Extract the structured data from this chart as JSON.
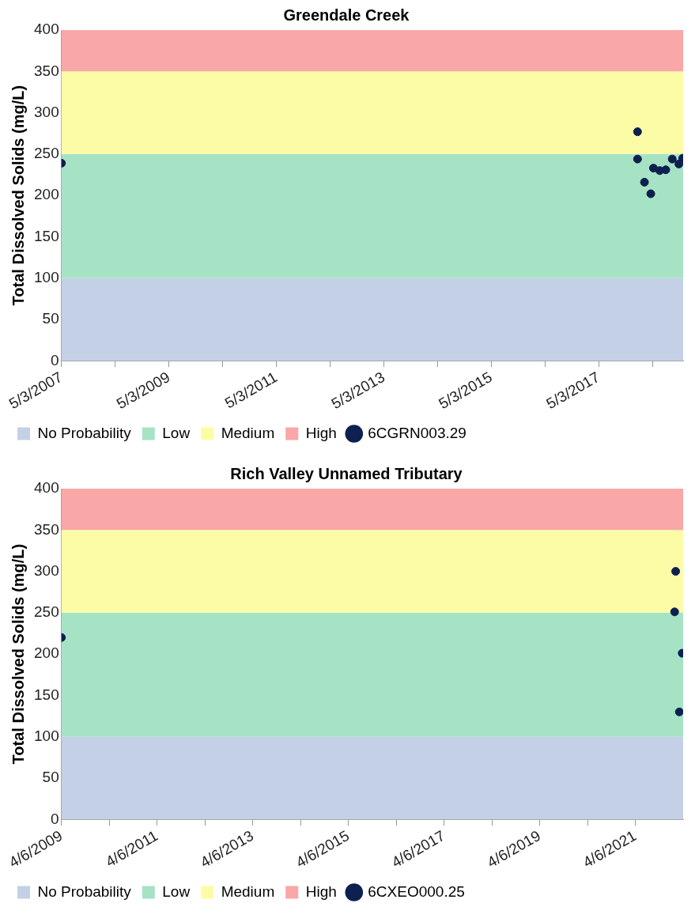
{
  "chart_data": [
    {
      "type": "scatter",
      "title": "Greendale Creek",
      "ylabel": "Total Dissolved Solids (mg/L)",
      "xlim": [
        "2007-05-03",
        "2018-11-28"
      ],
      "ylim": [
        0,
        400
      ],
      "yticks": [
        0,
        50,
        100,
        150,
        200,
        250,
        300,
        350,
        400
      ],
      "xticks": [
        {
          "value": "2007-05-03",
          "label": "5/3/2007"
        },
        {
          "value": "2008-05-03",
          "label": null
        },
        {
          "value": "2009-05-03",
          "label": "5/3/2009"
        },
        {
          "value": "2010-05-03",
          "label": null
        },
        {
          "value": "2011-05-03",
          "label": "5/3/2011"
        },
        {
          "value": "2012-05-03",
          "label": null
        },
        {
          "value": "2013-05-03",
          "label": "5/3/2013"
        },
        {
          "value": "2014-05-03",
          "label": null
        },
        {
          "value": "2015-05-03",
          "label": "5/3/2015"
        },
        {
          "value": "2016-05-03",
          "label": null
        },
        {
          "value": "2017-05-03",
          "label": "5/3/2017"
        },
        {
          "value": "2018-05-03",
          "label": null
        }
      ],
      "bands": [
        {
          "axis": "y",
          "from": 0,
          "to": 100,
          "label": "No Probability",
          "color": "#c3d0e6"
        },
        {
          "axis": "y",
          "from": 100,
          "to": 250,
          "label": "Low",
          "color": "#a6e3c4"
        },
        {
          "axis": "y",
          "from": 250,
          "to": 350,
          "label": "Medium",
          "color": "#fdfca6"
        },
        {
          "axis": "y",
          "from": 350,
          "to": 400,
          "label": "High",
          "color": "#f9a7a7"
        }
      ],
      "series": [
        {
          "name": "6CGRN003.29",
          "color": "#0d2050",
          "x": [
            "2007-05-03",
            "2018-01-22",
            "2018-01-22",
            "2018-03-10",
            "2018-04-22",
            "2018-05-10",
            "2018-06-22",
            "2018-08-02",
            "2018-09-15",
            "2018-10-30",
            "2018-11-25"
          ],
          "values": [
            239,
            277,
            244,
            216,
            202,
            233,
            230,
            231,
            244,
            238,
            245
          ]
        }
      ],
      "marker": "circle",
      "legend": "bottom",
      "grid": false
    },
    {
      "type": "scatter",
      "title": "Rich Valley Unnamed Tributary",
      "ylabel": "Total Dissolved Solids (mg/L)",
      "xlim": [
        "2009-04-06",
        "2022-04-06"
      ],
      "ylim": [
        0,
        400
      ],
      "yticks": [
        0,
        50,
        100,
        150,
        200,
        250,
        300,
        350,
        400
      ],
      "xticks": [
        {
          "value": "2009-04-06",
          "label": "4/6/2009"
        },
        {
          "value": "2010-04-06",
          "label": null
        },
        {
          "value": "2011-04-06",
          "label": "4/6/2011"
        },
        {
          "value": "2012-04-06",
          "label": null
        },
        {
          "value": "2013-04-06",
          "label": "4/6/2013"
        },
        {
          "value": "2014-04-06",
          "label": null
        },
        {
          "value": "2015-04-06",
          "label": "4/6/2015"
        },
        {
          "value": "2016-04-06",
          "label": null
        },
        {
          "value": "2017-04-06",
          "label": "4/6/2017"
        },
        {
          "value": "2018-04-06",
          "label": null
        },
        {
          "value": "2019-04-06",
          "label": "4/6/2019"
        },
        {
          "value": "2020-04-06",
          "label": null
        },
        {
          "value": "2021-04-06",
          "label": "4/6/2021"
        }
      ],
      "bands": [
        {
          "axis": "y",
          "from": 0,
          "to": 100,
          "label": "No Probability",
          "color": "#c3d0e6"
        },
        {
          "axis": "y",
          "from": 100,
          "to": 250,
          "label": "Low",
          "color": "#a6e3c4"
        },
        {
          "axis": "y",
          "from": 250,
          "to": 350,
          "label": "Medium",
          "color": "#fdfca6"
        },
        {
          "axis": "y",
          "from": 350,
          "to": 400,
          "label": "High",
          "color": "#f9a7a7"
        }
      ],
      "series": [
        {
          "name": "6CXEO000.25",
          "color": "#0d2050",
          "x": [
            "2009-04-06",
            "2022-02-08",
            "2022-01-31",
            "2022-03-30",
            "2022-03-08"
          ],
          "values": [
            220,
            300,
            251,
            201,
            130
          ]
        }
      ],
      "marker": "circle",
      "legend": "bottom",
      "grid": false
    }
  ]
}
